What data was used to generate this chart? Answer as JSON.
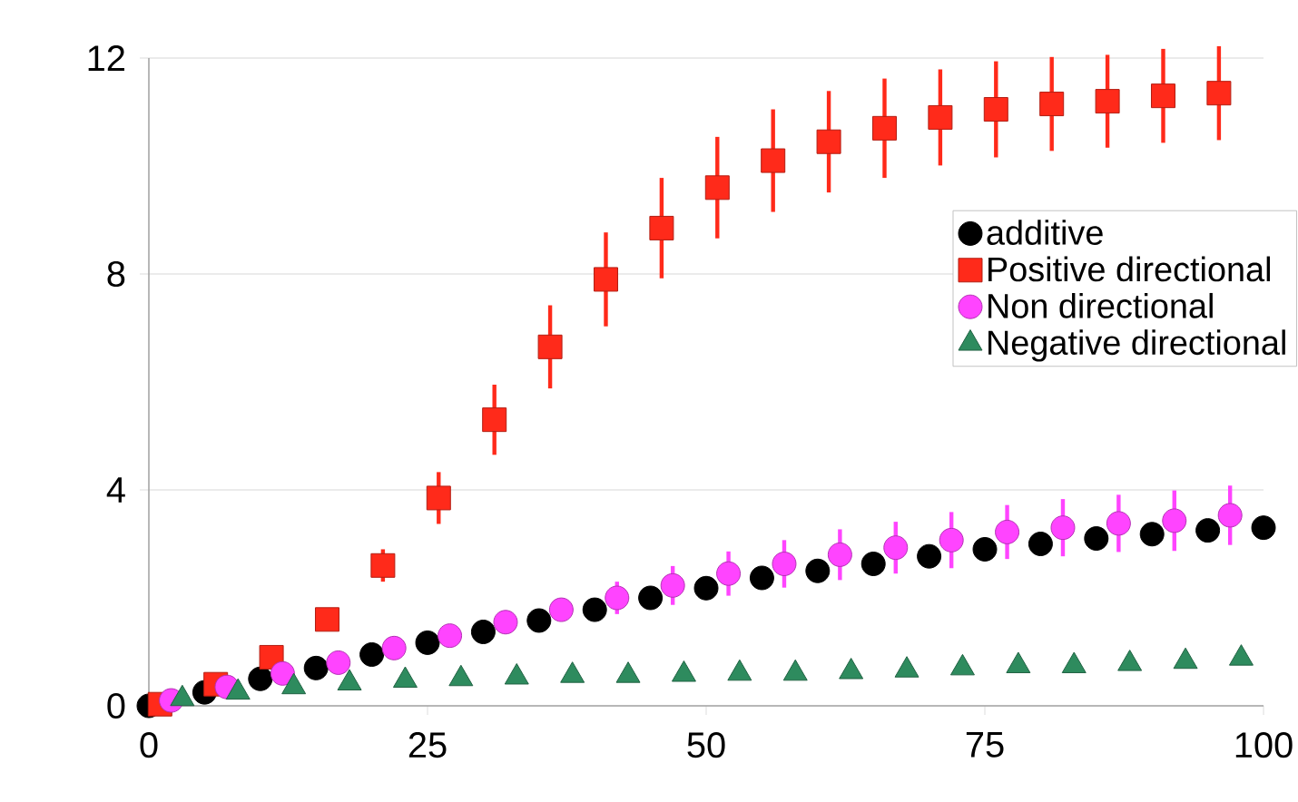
{
  "chart_data": {
    "type": "scatter",
    "xlim": [
      0,
      100
    ],
    "ylim": [
      0,
      12
    ],
    "xticks": [
      0,
      25,
      50,
      75,
      100
    ],
    "yticks": [
      0,
      4,
      8,
      12
    ],
    "grid": "y",
    "legend": "right",
    "series": [
      {
        "name": "additive",
        "color": "#000000",
        "marker": "circle",
        "x": [
          0,
          5,
          10,
          15,
          20,
          25,
          30,
          35,
          40,
          45,
          50,
          55,
          60,
          65,
          70,
          75,
          80,
          85,
          90,
          95,
          100
        ],
        "values": [
          0,
          0.25,
          0.5,
          0.7,
          0.95,
          1.17,
          1.37,
          1.58,
          1.78,
          2.0,
          2.18,
          2.37,
          2.5,
          2.63,
          2.77,
          2.9,
          3.0,
          3.1,
          3.18,
          3.25,
          3.3
        ]
      },
      {
        "name": "Positive directional",
        "color": "#ff2a1a",
        "marker": "square",
        "x": [
          1,
          6,
          11,
          16,
          21,
          26,
          31,
          36,
          41,
          46,
          51,
          56,
          61,
          66,
          71,
          76,
          81,
          86,
          91,
          96
        ],
        "values": [
          0.03,
          0.4,
          0.9,
          1.6,
          2.6,
          3.85,
          5.3,
          6.65,
          7.9,
          8.85,
          9.6,
          10.1,
          10.45,
          10.7,
          10.9,
          11.05,
          11.15,
          11.2,
          11.3,
          11.35
        ],
        "errors": [
          null,
          null,
          null,
          null,
          0.3,
          0.48,
          0.65,
          0.77,
          0.87,
          0.93,
          0.94,
          0.95,
          0.94,
          0.92,
          0.89,
          0.89,
          0.87,
          0.86,
          0.87,
          0.87
        ]
      },
      {
        "name": "Non directional",
        "color": "#ff44ff",
        "marker": "circle",
        "x": [
          2,
          7,
          12,
          17,
          22,
          27,
          32,
          37,
          42,
          47,
          52,
          57,
          62,
          67,
          72,
          77,
          82,
          87,
          92,
          97
        ],
        "values": [
          0.1,
          0.35,
          0.6,
          0.8,
          1.07,
          1.3,
          1.55,
          1.78,
          2.0,
          2.23,
          2.45,
          2.63,
          2.8,
          2.93,
          3.07,
          3.22,
          3.3,
          3.38,
          3.43,
          3.53
        ],
        "errors": [
          null,
          null,
          null,
          null,
          null,
          null,
          null,
          0.2,
          0.3,
          0.36,
          0.41,
          0.44,
          0.47,
          0.48,
          0.52,
          0.5,
          0.53,
          0.53,
          0.56,
          0.55
        ]
      },
      {
        "name": "Negative directional",
        "color": "#2e8b5e",
        "marker": "triangle",
        "x": [
          3,
          8,
          13,
          18,
          23,
          28,
          33,
          38,
          43,
          48,
          53,
          58,
          63,
          68,
          73,
          78,
          83,
          88,
          93,
          98
        ],
        "values": [
          0.13,
          0.25,
          0.35,
          0.42,
          0.47,
          0.5,
          0.53,
          0.56,
          0.56,
          0.58,
          0.6,
          0.6,
          0.63,
          0.66,
          0.7,
          0.74,
          0.74,
          0.78,
          0.82,
          0.88
        ]
      }
    ]
  }
}
